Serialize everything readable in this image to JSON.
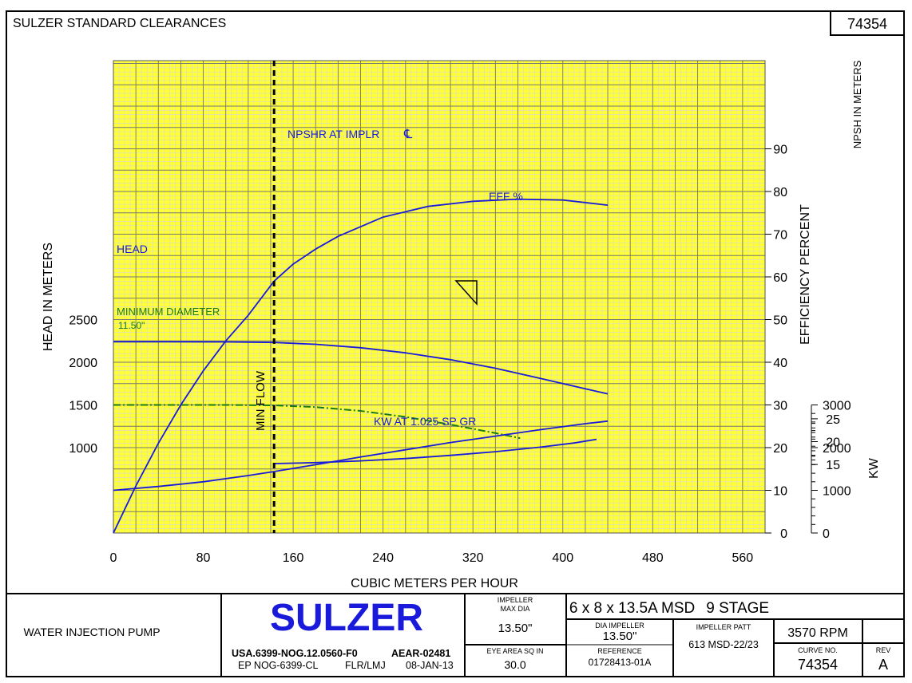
{
  "header": {
    "title": "SULZER STANDARD CLEARANCES",
    "curve_number": "74354"
  },
  "colors": {
    "plot_background": "#ffff33",
    "grid_minor": "#d8d8d8",
    "grid_major": "#777777",
    "curve_blue": "#1a1adb",
    "curve_green": "#1a7a1a",
    "brand_blue": "#1a1adb"
  },
  "chart_data": {
    "type": "line",
    "title": "SULZER STANDARD CLEARANCES",
    "xlabel": "CUBIC METERS PER HOUR",
    "xlim": [
      0,
      580
    ],
    "x_ticks": [
      0,
      80,
      160,
      240,
      320,
      400,
      480,
      560
    ],
    "axes": {
      "head": {
        "label": "HEAD IN METERS",
        "range": [
          0,
          3000
        ],
        "ticks": [
          1000,
          1500,
          2000,
          2500
        ]
      },
      "efficiency": {
        "label": "EFFICIENCY PERCENT",
        "range": [
          0,
          100
        ],
        "ticks": [
          0,
          10,
          20,
          30,
          40,
          50,
          60,
          70,
          80,
          90
        ]
      },
      "npsh": {
        "label": "NPSH IN METERS",
        "range": [
          15,
          25
        ],
        "ticks": [
          15,
          20,
          25
        ]
      },
      "kw": {
        "label": "KW",
        "range": [
          0,
          3000
        ],
        "ticks": [
          0,
          1000,
          2000,
          3000
        ]
      }
    },
    "min_flow": {
      "x": 143,
      "label": "MIN FLOW"
    },
    "grid": true,
    "series": [
      {
        "name": "HEAD",
        "axis": "head",
        "style": "solid",
        "color": "#1a1adb",
        "x": [
          0,
          50,
          100,
          143,
          180,
          220,
          260,
          300,
          340,
          380,
          420,
          440
        ],
        "y": [
          2240,
          2240,
          2238,
          2232,
          2210,
          2170,
          2110,
          2030,
          1930,
          1810,
          1690,
          1630
        ]
      },
      {
        "name": "MINIMUM DIAMETER 11.50\"",
        "axis": "head",
        "style": "dashdot",
        "color": "#1a7a1a",
        "x": [
          0,
          50,
          100,
          143,
          180,
          220,
          260,
          300,
          340,
          362
        ],
        "y": [
          1500,
          1500,
          1500,
          1495,
          1475,
          1430,
          1360,
          1270,
          1170,
          1110
        ]
      },
      {
        "name": "EFF %",
        "axis": "efficiency",
        "style": "solid",
        "color": "#1a1adb",
        "x": [
          0,
          20,
          40,
          60,
          80,
          100,
          120,
          143,
          160,
          180,
          200,
          240,
          280,
          320,
          360,
          400,
          440
        ],
        "y": [
          0,
          11,
          21,
          30,
          38,
          45,
          51,
          59,
          63,
          66.5,
          69.5,
          74,
          76.5,
          77.7,
          78.2,
          78,
          76.8
        ]
      },
      {
        "name": "NPSHR AT IMPLR CL",
        "axis": "npsh",
        "style": "solid",
        "color": "#1a1adb",
        "x": [
          143,
          180,
          220,
          260,
          300,
          340,
          380,
          410,
          430
        ],
        "y": [
          15.2,
          15.4,
          15.8,
          16.3,
          17.0,
          17.8,
          18.8,
          19.7,
          20.5
        ]
      },
      {
        "name": "KW AT 1.025 SP GR",
        "axis": "kw",
        "style": "solid",
        "color": "#1a1adb",
        "x": [
          0,
          40,
          80,
          120,
          143,
          180,
          220,
          260,
          300,
          340,
          380,
          420,
          440
        ],
        "y": [
          1000,
          1090,
          1200,
          1345,
          1440,
          1600,
          1780,
          1950,
          2120,
          2270,
          2420,
          2560,
          2620
        ]
      }
    ],
    "annotations": [
      "HEAD",
      "EFF %",
      "NPSHR AT IMPLR",
      "KW AT 1.025 SP GR",
      "MINIMUM DIAMETER",
      "11.50\"",
      "MIN FLOW"
    ]
  },
  "footer": {
    "pump_type": "WATER INJECTION PUMP",
    "brand": "SULZER",
    "doc_ref": "USA.6399-NOG.12.0560-F0",
    "aear": "AEAR-02481",
    "ep_ref": "EP NOG-6399-CL",
    "drawn_by": "FLR/LMJ",
    "date": "08-JAN-13",
    "impeller_max_dia_label_1": "IMPELLER",
    "impeller_max_dia_label_2": "MAX DIA",
    "impeller_max_dia": "13.50\"",
    "eye_area_label": "EYE AREA SQ IN",
    "eye_area": "30.0",
    "pump_model": "6 x 8 x 13.5A MSD",
    "stages": "9 STAGE",
    "dia_impeller_label": "DIA IMPELLER",
    "dia_impeller": "13.50\"",
    "impeller_patt_label": "IMPELLER PATT",
    "impeller_patt": "613 MSD-22/23",
    "rpm": "3570 RPM",
    "reference_label": "REFERENCE",
    "reference": "01728413-01A",
    "curve_no_label": "CURVE NO.",
    "curve_no": "74354",
    "rev_label": "REV",
    "rev": "A"
  }
}
